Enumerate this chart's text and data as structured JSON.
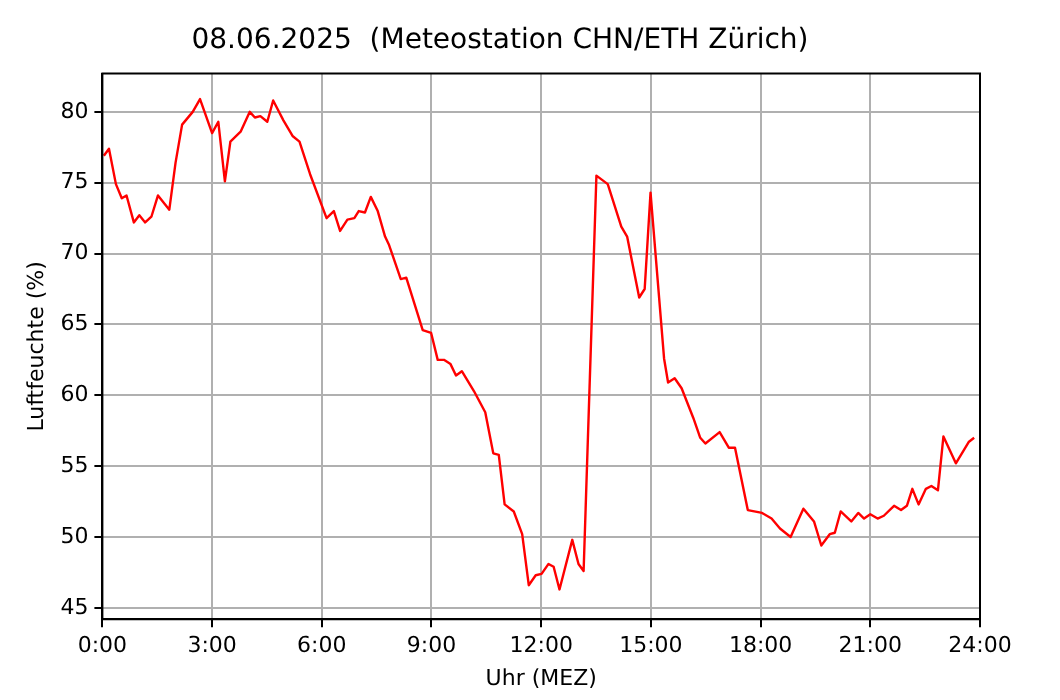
{
  "chart_data": {
    "type": "line",
    "title": "08.06.2025  (Meteostation CHN/ETH Zürich)",
    "xlabel": "Uhr (MEZ)",
    "ylabel": "Luftfeuchte (%)",
    "x": [
      0.04,
      0.18,
      0.37,
      0.53,
      0.66,
      0.86,
      1.01,
      1.17,
      1.34,
      1.52,
      1.83,
      2.0,
      2.18,
      2.47,
      2.67,
      3.0,
      3.17,
      3.35,
      3.5,
      3.78,
      4.03,
      4.17,
      4.32,
      4.51,
      4.67,
      4.95,
      5.2,
      5.39,
      5.68,
      6.13,
      6.33,
      6.5,
      6.7,
      6.89,
      7.01,
      7.18,
      7.34,
      7.53,
      7.73,
      7.84,
      8.16,
      8.31,
      8.76,
      8.99,
      9.17,
      9.34,
      9.52,
      9.67,
      9.83,
      10.16,
      10.47,
      10.69,
      10.84,
      11.0,
      11.25,
      11.48,
      11.66,
      11.85,
      12.01,
      12.2,
      12.34,
      12.5,
      12.85,
      13.02,
      13.16,
      13.51,
      13.82,
      14.19,
      14.35,
      14.68,
      14.83,
      14.99,
      15.36,
      15.47,
      15.65,
      15.84,
      16.16,
      16.35,
      16.49,
      16.88,
      17.13,
      17.3,
      17.65,
      18.04,
      18.3,
      18.53,
      18.82,
      19.17,
      19.46,
      19.66,
      19.89,
      20.03,
      20.19,
      20.48,
      20.67,
      20.83,
      21.0,
      21.2,
      21.37,
      21.65,
      21.84,
      22.0,
      22.15,
      22.32,
      22.52,
      22.67,
      22.85,
      23.0,
      23.34,
      23.69,
      23.84
    ],
    "series": [
      {
        "color": "#ff0000",
        "values": [
          76.9,
          77.4,
          74.9,
          73.9,
          74.1,
          72.2,
          72.7,
          72.2,
          72.6,
          74.1,
          73.1,
          76.4,
          79.1,
          80.0,
          80.9,
          78.5,
          79.3,
          75.1,
          77.9,
          78.6,
          80.0,
          79.6,
          79.7,
          79.3,
          80.8,
          79.4,
          78.3,
          77.9,
          75.6,
          72.5,
          73.0,
          71.6,
          72.4,
          72.5,
          73.0,
          72.9,
          74.0,
          73.0,
          71.2,
          70.6,
          68.2,
          68.3,
          64.6,
          64.4,
          62.5,
          62.5,
          62.2,
          61.4,
          61.7,
          60.3,
          58.8,
          55.9,
          55.8,
          52.3,
          51.8,
          50.2,
          46.6,
          47.3,
          47.4,
          48.1,
          47.9,
          46.3,
          49.8,
          48.1,
          47.6,
          75.5,
          74.9,
          71.9,
          71.2,
          66.9,
          67.5,
          74.3,
          62.6,
          60.9,
          61.2,
          60.5,
          58.4,
          57.0,
          56.6,
          57.4,
          56.3,
          56.3,
          51.9,
          51.7,
          51.3,
          50.6,
          50.0,
          52.0,
          51.1,
          49.4,
          50.2,
          50.3,
          51.8,
          51.1,
          51.7,
          51.3,
          51.6,
          51.3,
          51.5,
          52.2,
          51.9,
          52.2,
          53.4,
          52.3,
          53.4,
          53.6,
          53.3,
          57.1,
          55.2,
          56.7,
          57.0
        ]
      }
    ],
    "xlim": [
      0,
      24
    ],
    "xticks": [
      {
        "value": 0,
        "label": "0:00"
      },
      {
        "value": 3,
        "label": "3:00"
      },
      {
        "value": 6,
        "label": "6:00"
      },
      {
        "value": 9,
        "label": "9:00"
      },
      {
        "value": 12,
        "label": "12:00"
      },
      {
        "value": 15,
        "label": "15:00"
      },
      {
        "value": 18,
        "label": "18:00"
      },
      {
        "value": 21,
        "label": "21:00"
      },
      {
        "value": 24,
        "label": "24:00"
      }
    ],
    "ylim": [
      44.2,
      82.7
    ],
    "yticks": [
      45,
      50,
      55,
      60,
      65,
      70,
      75,
      80
    ],
    "grid": true,
    "legend": false,
    "marker": "none",
    "line_style": "solid"
  }
}
